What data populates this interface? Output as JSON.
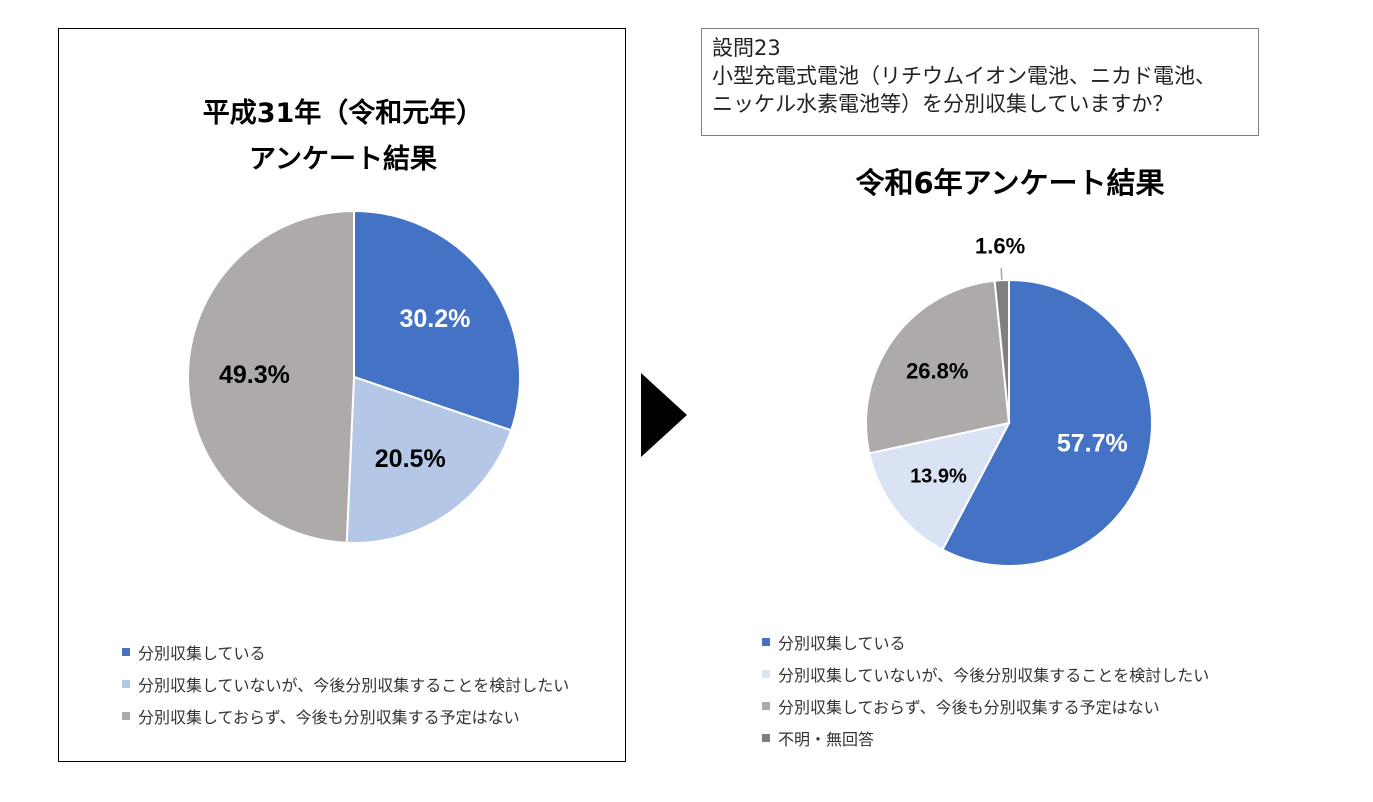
{
  "left_chart": {
    "title_line1": "平成31年（令和元年）",
    "title_line2": "アンケート結果"
  },
  "question": {
    "line1": "設問23",
    "line2": "小型充電式電池（リチウムイオン電池、ニカド電池、",
    "line3": "ニッケル水素電池等）を分別収集していますか？"
  },
  "right_chart": {
    "title": "令和6年アンケート結果"
  },
  "arrow_icon": "play-triangle-icon",
  "chart_data": [
    {
      "type": "pie",
      "title": "平成31年（令和元年） アンケート結果",
      "legend_position": "bottom",
      "slices": [
        {
          "label": "分別収集している",
          "value": 30.2,
          "display": "30.2%",
          "color": "#4472c4"
        },
        {
          "label": "分別収集していないが、今後分別収集することを検討したい",
          "value": 20.5,
          "display": "20.5%",
          "color": "#b4c7e7"
        },
        {
          "label": "分別収集しておらず、今後も分別収集する予定はない",
          "value": 49.3,
          "display": "49.3%",
          "color": "#aeaaaa"
        }
      ]
    },
    {
      "type": "pie",
      "title": "令和6年アンケート結果",
      "legend_position": "bottom",
      "slices": [
        {
          "label": "分別収集している",
          "value": 57.7,
          "display": "57.7%",
          "color": "#4472c4"
        },
        {
          "label": "分別収集していないが、今後分別収集することを検討したい",
          "value": 13.9,
          "display": "13.9%",
          "color": "#dae3f3"
        },
        {
          "label": "分別収集しておらず、今後も分別収集する予定はない",
          "value": 26.8,
          "display": "26.8%",
          "color": "#aeaaaa"
        },
        {
          "label": "不明・無回答",
          "value": 1.6,
          "display": "1.6%",
          "color": "#7f7f7f"
        }
      ]
    }
  ]
}
